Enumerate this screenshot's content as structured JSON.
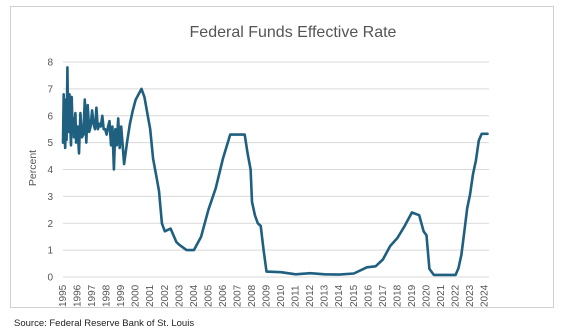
{
  "source_note": "Source: Federal Reserve Bank of St. Louis",
  "chart_data": {
    "type": "line",
    "title": "Federal Funds Effective Rate",
    "xlabel": "",
    "ylabel": "Percent",
    "xlim": [
      1995,
      2024.3
    ],
    "ylim": [
      0,
      8
    ],
    "yticks": [
      0,
      1,
      2,
      3,
      4,
      5,
      6,
      7,
      8
    ],
    "xticks": [
      "1995",
      "1996",
      "1997",
      "1998",
      "1999",
      "2000",
      "2001",
      "2002",
      "2003",
      "2004",
      "2005",
      "2006",
      "2007",
      "2008",
      "2009",
      "2010",
      "2011",
      "2012",
      "2013",
      "2014",
      "2015",
      "2016",
      "2017",
      "2018",
      "2019",
      "2020",
      "2021",
      "2022",
      "2023",
      "2024"
    ],
    "grid": "horizontal",
    "line_color": "#1f5f7f",
    "series": [
      {
        "name": "",
        "x": [
          1995.0,
          1995.05,
          1995.1,
          1995.15,
          1995.2,
          1995.25,
          1995.3,
          1995.35,
          1995.4,
          1995.45,
          1995.5,
          1995.55,
          1995.6,
          1995.65,
          1995.7,
          1995.75,
          1995.8,
          1995.85,
          1995.9,
          1995.95,
          1996.0,
          1996.1,
          1996.2,
          1996.3,
          1996.4,
          1996.5,
          1996.6,
          1996.7,
          1996.8,
          1996.9,
          1997.0,
          1997.1,
          1997.2,
          1997.3,
          1997.4,
          1997.5,
          1997.6,
          1997.7,
          1997.8,
          1997.9,
          1998.0,
          1998.1,
          1998.2,
          1998.3,
          1998.4,
          1998.5,
          1998.6,
          1998.7,
          1998.8,
          1998.9,
          1999.0,
          1999.2,
          1999.4,
          1999.6,
          1999.8,
          2000.0,
          2000.2,
          2000.4,
          2000.6,
          2000.8,
          2001.0,
          2001.2,
          2001.4,
          2001.6,
          2001.8,
          2002.0,
          2002.4,
          2002.8,
          2003.0,
          2003.5,
          2004.0,
          2004.5,
          2005.0,
          2005.5,
          2006.0,
          2006.5,
          2007.0,
          2007.5,
          2007.7,
          2007.9,
          2008.0,
          2008.2,
          2008.4,
          2008.6,
          2008.8,
          2009.0,
          2010.0,
          2011.0,
          2012.0,
          2013.0,
          2014.0,
          2015.0,
          2015.9,
          2016.5,
          2017.0,
          2017.5,
          2018.0,
          2018.5,
          2019.0,
          2019.5,
          2019.8,
          2020.0,
          2020.2,
          2020.5,
          2021.0,
          2022.0,
          2022.2,
          2022.4,
          2022.6,
          2022.8,
          2023.0,
          2023.2,
          2023.4,
          2023.6,
          2023.8,
          2024.0,
          2024.2
        ],
        "values": [
          5.0,
          6.8,
          5.3,
          4.8,
          6.6,
          5.1,
          7.8,
          5.7,
          5.4,
          6.8,
          5.6,
          4.9,
          6.7,
          5.6,
          5.9,
          5.2,
          5.7,
          6.1,
          5.0,
          5.5,
          5.6,
          4.6,
          6.1,
          5.2,
          5.3,
          6.6,
          5.0,
          6.4,
          5.4,
          5.6,
          6.2,
          5.7,
          5.5,
          6.3,
          5.5,
          5.7,
          5.6,
          6.0,
          5.5,
          5.5,
          5.3,
          5.6,
          5.8,
          4.9,
          5.6,
          4.0,
          5.5,
          4.9,
          5.9,
          4.8,
          5.6,
          4.2,
          5.0,
          5.7,
          6.2,
          6.6,
          6.8,
          7.0,
          6.7,
          6.1,
          5.5,
          4.4,
          3.8,
          3.2,
          2.0,
          1.7,
          1.8,
          1.3,
          1.2,
          1.0,
          1.0,
          1.5,
          2.5,
          3.3,
          4.4,
          5.3,
          5.3,
          5.3,
          4.6,
          4.0,
          2.8,
          2.3,
          2.0,
          1.9,
          1.0,
          0.2,
          0.18,
          0.1,
          0.14,
          0.1,
          0.09,
          0.13,
          0.36,
          0.4,
          0.65,
          1.15,
          1.45,
          1.9,
          2.4,
          2.3,
          1.7,
          1.55,
          0.3,
          0.08,
          0.08,
          0.08,
          0.33,
          0.83,
          1.68,
          2.56,
          3.08,
          3.83,
          4.33,
          5.08,
          5.33,
          5.33,
          5.33
        ]
      }
    ]
  }
}
